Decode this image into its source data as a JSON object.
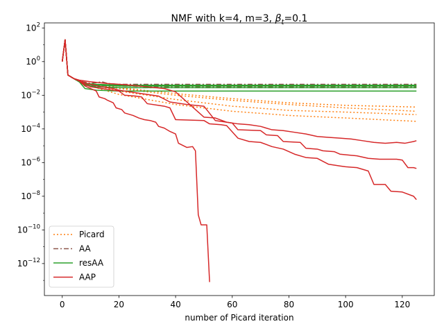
{
  "chart_data": {
    "type": "line",
    "title_main": "NMF with k=4, m=3,  ",
    "title_beta": "β",
    "title_sub": "t",
    "title_tail": "=0.1",
    "xlabel": "number of Picard iteration",
    "ylabel": "",
    "xlim": [
      -6.3,
      131.3
    ],
    "ylim_exp": [
      -13.9,
      2.3
    ],
    "yscale": "log",
    "grid": false,
    "legend_position": "lower-left",
    "x_ticks": [
      0,
      20,
      40,
      60,
      80,
      100,
      120
    ],
    "y_ticks": [
      {
        "exp": 2,
        "label": "10",
        "sup": "2"
      },
      {
        "exp": 0,
        "label": "10",
        "sup": "0"
      },
      {
        "exp": -2,
        "label": "10",
        "sup": "−2"
      },
      {
        "exp": -4,
        "label": "10",
        "sup": "−4"
      },
      {
        "exp": -6,
        "label": "10",
        "sup": "−6"
      },
      {
        "exp": -8,
        "label": "10",
        "sup": "−8"
      },
      {
        "exp": -10,
        "label": "10",
        "sup": "−10"
      },
      {
        "exp": -12,
        "label": "10",
        "sup": "−12"
      }
    ],
    "legend": [
      {
        "label": "Picard",
        "color": "#ff7f0e",
        "dash": "2,3"
      },
      {
        "label": "AA",
        "color": "#8c564b",
        "dash": "7,3,2,3"
      },
      {
        "label": "resAA",
        "color": "#2ca02c",
        "dash": ""
      },
      {
        "label": "AAP",
        "color": "#d62728",
        "dash": ""
      }
    ],
    "series": [
      {
        "group": "Picard",
        "color": "#ff7f0e",
        "dash": "2,3",
        "points": [
          [
            0,
            0
          ],
          [
            1,
            1.3
          ],
          [
            2,
            -0.8
          ],
          [
            4,
            -1.0
          ],
          [
            6,
            -1.15
          ],
          [
            10,
            -1.3
          ],
          [
            20,
            -1.55
          ],
          [
            40,
            -1.9
          ],
          [
            60,
            -2.2
          ],
          [
            80,
            -2.45
          ],
          [
            100,
            -2.6
          ],
          [
            125,
            -2.7
          ]
        ]
      },
      {
        "group": "Picard",
        "color": "#ff7f0e",
        "dash": "2,3",
        "points": [
          [
            0,
            0
          ],
          [
            1,
            1.3
          ],
          [
            2,
            -0.8
          ],
          [
            4,
            -1.0
          ],
          [
            6,
            -1.15
          ],
          [
            10,
            -1.3
          ],
          [
            20,
            -1.6
          ],
          [
            40,
            -2.0
          ],
          [
            60,
            -2.3
          ],
          [
            80,
            -2.55
          ],
          [
            100,
            -2.75
          ],
          [
            125,
            -2.95
          ]
        ]
      },
      {
        "group": "Picard",
        "color": "#ff7f0e",
        "dash": "2,3",
        "points": [
          [
            0,
            0
          ],
          [
            1,
            1.3
          ],
          [
            2,
            -0.8
          ],
          [
            4,
            -1.0
          ],
          [
            6,
            -1.15
          ],
          [
            10,
            -1.35
          ],
          [
            20,
            -1.75
          ],
          [
            40,
            -2.25
          ],
          [
            60,
            -2.65
          ],
          [
            80,
            -2.9
          ],
          [
            100,
            -3.0
          ],
          [
            125,
            -3.15
          ]
        ]
      },
      {
        "group": "Picard",
        "color": "#ff7f0e",
        "dash": "2,3",
        "points": [
          [
            0,
            0
          ],
          [
            1,
            1.3
          ],
          [
            2,
            -0.8
          ],
          [
            4,
            -1.0
          ],
          [
            6,
            -1.2
          ],
          [
            10,
            -1.45
          ],
          [
            20,
            -1.95
          ],
          [
            40,
            -2.55
          ],
          [
            60,
            -2.95
          ],
          [
            80,
            -3.2
          ],
          [
            100,
            -3.35
          ],
          [
            125,
            -3.55
          ]
        ]
      },
      {
        "group": "AA",
        "color": "#8c564b",
        "dash": "7,3,2,3",
        "points": [
          [
            0,
            0
          ],
          [
            1,
            1.3
          ],
          [
            2,
            -0.8
          ],
          [
            4,
            -1.0
          ],
          [
            6,
            -1.15
          ],
          [
            10,
            -1.3
          ],
          [
            14,
            -1.2
          ],
          [
            16,
            -1.3
          ],
          [
            20,
            -1.35
          ],
          [
            40,
            -1.35
          ],
          [
            125,
            -1.35
          ]
        ]
      },
      {
        "group": "AA",
        "color": "#8c564b",
        "dash": "7,3,2,3",
        "points": [
          [
            0,
            0
          ],
          [
            1,
            1.3
          ],
          [
            2,
            -0.8
          ],
          [
            4,
            -1.0
          ],
          [
            6,
            -1.15
          ],
          [
            10,
            -1.35
          ],
          [
            20,
            -1.4
          ],
          [
            40,
            -1.45
          ],
          [
            125,
            -1.45
          ]
        ]
      },
      {
        "group": "AA",
        "color": "#8c564b",
        "dash": "7,3,2,3",
        "points": [
          [
            0,
            0
          ],
          [
            1,
            1.3
          ],
          [
            2,
            -0.8
          ],
          [
            4,
            -1.0
          ],
          [
            6,
            -1.2
          ],
          [
            10,
            -1.4
          ],
          [
            20,
            -1.45
          ],
          [
            40,
            -1.5
          ],
          [
            125,
            -1.5
          ]
        ]
      },
      {
        "group": "AA",
        "color": "#8c564b",
        "dash": "7,3,2,3",
        "points": [
          [
            0,
            0
          ],
          [
            1,
            1.3
          ],
          [
            2,
            -0.8
          ],
          [
            4,
            -1.0
          ],
          [
            6,
            -1.2
          ],
          [
            10,
            -1.45
          ],
          [
            20,
            -1.55
          ],
          [
            40,
            -1.55
          ],
          [
            125,
            -1.55
          ]
        ]
      },
      {
        "group": "resAA",
        "color": "#2ca02c",
        "dash": "",
        "points": [
          [
            0,
            0
          ],
          [
            1,
            1.3
          ],
          [
            2,
            -0.8
          ],
          [
            4,
            -1.0
          ],
          [
            6,
            -1.2
          ],
          [
            8,
            -1.6
          ],
          [
            12,
            -1.7
          ],
          [
            20,
            -1.75
          ],
          [
            125,
            -1.75
          ]
        ]
      },
      {
        "group": "resAA",
        "color": "#2ca02c",
        "dash": "",
        "points": [
          [
            0,
            0
          ],
          [
            1,
            1.3
          ],
          [
            2,
            -0.8
          ],
          [
            4,
            -1.0
          ],
          [
            6,
            -1.2
          ],
          [
            8,
            -1.4
          ],
          [
            12,
            -1.5
          ],
          [
            20,
            -1.55
          ],
          [
            125,
            -1.55
          ]
        ]
      },
      {
        "group": "resAA",
        "color": "#2ca02c",
        "dash": "",
        "points": [
          [
            0,
            0
          ],
          [
            1,
            1.3
          ],
          [
            2,
            -0.8
          ],
          [
            4,
            -1.0
          ],
          [
            6,
            -1.2
          ],
          [
            8,
            -1.35
          ],
          [
            12,
            -1.4
          ],
          [
            20,
            -1.45
          ],
          [
            125,
            -1.45
          ]
        ]
      },
      {
        "group": "resAA",
        "color": "#2ca02c",
        "dash": "",
        "points": [
          [
            0,
            0
          ],
          [
            1,
            1.3
          ],
          [
            2,
            -0.8
          ],
          [
            4,
            -1.0
          ],
          [
            6,
            -1.2
          ],
          [
            8,
            -1.3
          ],
          [
            12,
            -1.35
          ],
          [
            20,
            -1.4
          ],
          [
            125,
            -1.4
          ]
        ]
      },
      {
        "group": "AAP",
        "color": "#d62728",
        "dash": "",
        "points": [
          [
            0,
            0
          ],
          [
            1,
            1.3
          ],
          [
            2,
            -0.8
          ],
          [
            4,
            -1.0
          ],
          [
            6,
            -1.15
          ],
          [
            8,
            -1.45
          ],
          [
            10,
            -1.6
          ],
          [
            12,
            -1.75
          ],
          [
            13,
            -2.1
          ],
          [
            15,
            -2.2
          ],
          [
            16,
            -2.3
          ],
          [
            18,
            -2.45
          ],
          [
            19,
            -2.75
          ],
          [
            21,
            -2.85
          ],
          [
            22,
            -3.05
          ],
          [
            25,
            -3.2
          ],
          [
            27,
            -3.35
          ],
          [
            29,
            -3.45
          ],
          [
            31,
            -3.5
          ],
          [
            33,
            -3.6
          ],
          [
            34,
            -3.85
          ],
          [
            36,
            -3.95
          ],
          [
            38,
            -4.15
          ],
          [
            40,
            -4.3
          ],
          [
            41,
            -4.85
          ],
          [
            44,
            -5.1
          ],
          [
            46,
            -5.05
          ],
          [
            47,
            -5.3
          ],
          [
            48,
            -9.1
          ],
          [
            49,
            -9.7
          ],
          [
            51,
            -9.7
          ],
          [
            52,
            -13.1
          ]
        ]
      },
      {
        "group": "AAP",
        "color": "#d62728",
        "dash": "",
        "points": [
          [
            0,
            0
          ],
          [
            1,
            1.3
          ],
          [
            2,
            -0.8
          ],
          [
            4,
            -1.0
          ],
          [
            6,
            -1.15
          ],
          [
            8,
            -1.35
          ],
          [
            10,
            -1.5
          ],
          [
            14,
            -1.6
          ],
          [
            16,
            -1.65
          ],
          [
            20,
            -1.75
          ],
          [
            22,
            -2.0
          ],
          [
            26,
            -2.05
          ],
          [
            28,
            -2.1
          ],
          [
            30,
            -2.5
          ],
          [
            34,
            -2.6
          ],
          [
            36,
            -2.65
          ],
          [
            38,
            -2.75
          ],
          [
            40,
            -3.45
          ],
          [
            50,
            -3.5
          ],
          [
            52,
            -3.7
          ],
          [
            56,
            -3.75
          ],
          [
            58,
            -3.8
          ],
          [
            62,
            -4.55
          ],
          [
            66,
            -4.75
          ],
          [
            70,
            -4.8
          ],
          [
            74,
            -5.05
          ],
          [
            78,
            -5.2
          ],
          [
            82,
            -5.5
          ],
          [
            86,
            -5.7
          ],
          [
            90,
            -5.75
          ],
          [
            94,
            -6.1
          ],
          [
            98,
            -6.2
          ],
          [
            100,
            -6.25
          ],
          [
            104,
            -6.3
          ],
          [
            108,
            -6.5
          ],
          [
            110,
            -7.3
          ],
          [
            114,
            -7.3
          ],
          [
            116,
            -7.7
          ],
          [
            120,
            -7.75
          ],
          [
            124,
            -8.0
          ],
          [
            125,
            -8.2
          ]
        ]
      },
      {
        "group": "AAP",
        "color": "#d62728",
        "dash": "",
        "points": [
          [
            0,
            0
          ],
          [
            1,
            1.3
          ],
          [
            2,
            -0.8
          ],
          [
            4,
            -1.0
          ],
          [
            6,
            -1.15
          ],
          [
            10,
            -1.35
          ],
          [
            14,
            -1.5
          ],
          [
            18,
            -1.6
          ],
          [
            20,
            -1.7
          ],
          [
            24,
            -1.8
          ],
          [
            30,
            -1.95
          ],
          [
            34,
            -2.05
          ],
          [
            38,
            -2.4
          ],
          [
            44,
            -2.55
          ],
          [
            50,
            -2.65
          ],
          [
            54,
            -3.5
          ],
          [
            60,
            -3.65
          ],
          [
            62,
            -4.05
          ],
          [
            70,
            -4.1
          ],
          [
            72,
            -4.35
          ],
          [
            76,
            -4.4
          ],
          [
            78,
            -4.75
          ],
          [
            84,
            -4.8
          ],
          [
            86,
            -5.15
          ],
          [
            90,
            -5.2
          ],
          [
            92,
            -5.3
          ],
          [
            96,
            -5.35
          ],
          [
            98,
            -5.5
          ],
          [
            104,
            -5.6
          ],
          [
            108,
            -5.75
          ],
          [
            112,
            -5.8
          ],
          [
            118,
            -5.8
          ],
          [
            120,
            -5.85
          ],
          [
            122,
            -6.3
          ],
          [
            124,
            -6.3
          ],
          [
            125,
            -6.35
          ]
        ]
      },
      {
        "group": "AAP",
        "color": "#d62728",
        "dash": "",
        "points": [
          [
            0,
            0
          ],
          [
            1,
            1.3
          ],
          [
            2,
            -0.8
          ],
          [
            4,
            -1.0
          ],
          [
            6,
            -1.1
          ],
          [
            10,
            -1.2
          ],
          [
            16,
            -1.3
          ],
          [
            20,
            -1.35
          ],
          [
            24,
            -1.4
          ],
          [
            30,
            -1.5
          ],
          [
            36,
            -1.6
          ],
          [
            40,
            -1.8
          ],
          [
            50,
            -3.3
          ],
          [
            54,
            -3.35
          ],
          [
            58,
            -3.6
          ],
          [
            62,
            -3.7
          ],
          [
            66,
            -3.75
          ],
          [
            70,
            -3.85
          ],
          [
            74,
            -4.05
          ],
          [
            78,
            -4.1
          ],
          [
            82,
            -4.2
          ],
          [
            86,
            -4.3
          ],
          [
            90,
            -4.45
          ],
          [
            94,
            -4.5
          ],
          [
            98,
            -4.55
          ],
          [
            102,
            -4.6
          ],
          [
            106,
            -4.7
          ],
          [
            110,
            -4.8
          ],
          [
            114,
            -4.85
          ],
          [
            118,
            -4.8
          ],
          [
            121,
            -4.85
          ],
          [
            124,
            -4.75
          ],
          [
            125,
            -4.7
          ]
        ]
      }
    ]
  }
}
